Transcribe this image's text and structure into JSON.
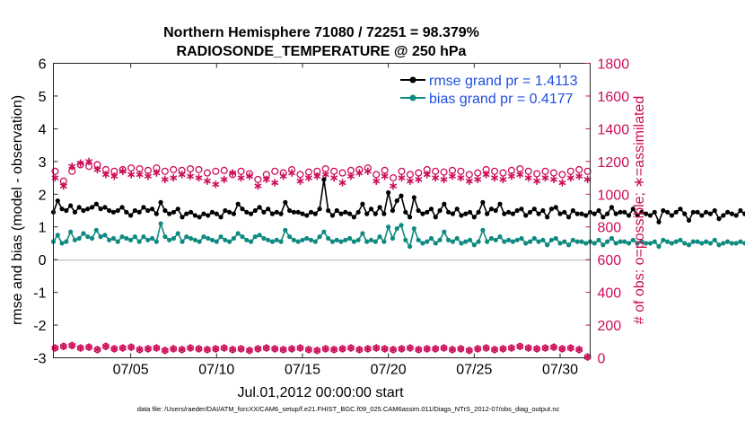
{
  "chart_data": {
    "type": "line",
    "title_line1": "Northern Hemisphere 71080 / 72251 = 98.379%",
    "title_line2": "RADIOSONDE_TEMPERATURE @ 250 hPa",
    "xlabel": "Jul.01,2012 00:00:00 start",
    "ylabel_left": "rmse and bias (model - observation)",
    "ylabel_right": "# of obs: o=possible; ∗=assimilated",
    "footer": "data file: /Users/raeder/DAI/ATM_forcXX/CAM6_setup/f.e21.FHIST_BGC.f09_025.CAM6assim.011/Diags_NTrS_2012-07/obs_diag_output.nc",
    "xlim": [
      0.5,
      31.75
    ],
    "ylim_left": [
      -3,
      6
    ],
    "ylim_right": [
      0,
      1800
    ],
    "x_ticks": [
      5,
      10,
      15,
      20,
      25,
      30
    ],
    "x_tick_labels": [
      "07/05",
      "07/10",
      "07/15",
      "07/20",
      "07/25",
      "07/30"
    ],
    "y_left_ticks": [
      "-3",
      "-2",
      "-1",
      "0",
      "1",
      "2",
      "3",
      "4",
      "5",
      "6"
    ],
    "y_right_ticks": [
      "0",
      "200",
      "400",
      "600",
      "800",
      "1000",
      "1200",
      "1400",
      "1600",
      "1800"
    ],
    "legend_location": "top-right",
    "legend": [
      {
        "label": "rmse grand pr = 1.4113",
        "color": "#000000"
      },
      {
        "label": "bias grand pr = 0.4177",
        "color": "#0f8a80"
      }
    ],
    "colors": {
      "rmse": "#000000",
      "bias": "#0f8a80",
      "obs": "#cc0e5a",
      "zero_line": "#b0b0b0"
    },
    "x_start": 0.5,
    "x_step": 0.25,
    "rmse": [
      1.45,
      1.8,
      1.55,
      1.5,
      1.65,
      1.45,
      1.6,
      1.5,
      1.55,
      1.6,
      1.7,
      1.55,
      1.6,
      1.5,
      1.45,
      1.5,
      1.6,
      1.45,
      1.35,
      1.5,
      1.45,
      1.6,
      1.5,
      1.55,
      1.4,
      1.75,
      1.5,
      1.4,
      1.45,
      1.55,
      1.3,
      1.4,
      1.45,
      1.35,
      1.3,
      1.4,
      1.35,
      1.45,
      1.4,
      1.3,
      1.5,
      1.45,
      1.4,
      1.7,
      1.55,
      1.45,
      1.4,
      1.5,
      1.6,
      1.45,
      1.55,
      1.4,
      1.45,
      1.4,
      1.75,
      1.5,
      1.45,
      1.45,
      1.4,
      1.35,
      1.45,
      1.4,
      1.55,
      2.45,
      1.5,
      1.35,
      1.5,
      1.4,
      1.45,
      1.4,
      1.3,
      1.45,
      1.7,
      1.4,
      1.55,
      1.4,
      1.6,
      1.4,
      2.05,
      1.5,
      1.8,
      1.95,
      1.45,
      1.3,
      1.9,
      1.5,
      1.4,
      1.45,
      1.55,
      1.3,
      1.5,
      1.7,
      1.45,
      1.4,
      1.55,
      1.35,
      1.4,
      1.45,
      1.3,
      1.45,
      1.75,
      1.4,
      1.55,
      1.5,
      1.7,
      1.4,
      1.45,
      1.4,
      1.5,
      1.55,
      1.35,
      1.45,
      1.55,
      1.4,
      1.5,
      1.3,
      1.55,
      1.6,
      1.4,
      1.45,
      1.3,
      1.5,
      1.4,
      1.4,
      1.35,
      1.45,
      1.4,
      1.5,
      1.3,
      1.4,
      1.6,
      1.4,
      1.45,
      1.45,
      1.35,
      1.55,
      1.35,
      1.45,
      1.4,
      1.35,
      1.45,
      1.15,
      1.5,
      1.45,
      1.35,
      1.45,
      1.55,
      1.4,
      1.2,
      1.45,
      1.45,
      1.35,
      1.45,
      1.4,
      1.5,
      1.25,
      1.35,
      1.45,
      1.4,
      1.35,
      1.5,
      1.4,
      1.3,
      1.6,
      1.35,
      1.45,
      1.45,
      1.5,
      1.3,
      1.4,
      1.6,
      1.35,
      1.45,
      1.55,
      1.4,
      1.35,
      1.5,
      1.45,
      1.25,
      1.55,
      1.45,
      1.4,
      1.55,
      1.45,
      1.5,
      1.55,
      1.4,
      1.35,
      1.45,
      1.4,
      1.35,
      1.45,
      1.25,
      1.3,
      1.5,
      1.45,
      1.3,
      1.55,
      1.45,
      1.35,
      1.2,
      1.5,
      1.3,
      1.4,
      1.45,
      1.3,
      1.65,
      1.4,
      1.4
    ],
    "bias": [
      0.55,
      0.75,
      0.5,
      0.55,
      0.85,
      0.6,
      0.65,
      0.8,
      0.7,
      0.65,
      0.9,
      0.7,
      0.75,
      0.6,
      0.65,
      0.55,
      0.7,
      0.65,
      0.6,
      0.7,
      0.55,
      0.7,
      0.6,
      0.65,
      0.55,
      1.1,
      0.7,
      0.6,
      0.65,
      0.8,
      0.55,
      0.7,
      0.65,
      0.6,
      0.55,
      0.7,
      0.65,
      0.6,
      0.55,
      0.7,
      0.6,
      0.55,
      0.65,
      0.8,
      0.7,
      0.6,
      0.55,
      0.7,
      0.75,
      0.65,
      0.6,
      0.55,
      0.6,
      0.55,
      0.9,
      0.7,
      0.6,
      0.55,
      0.6,
      0.65,
      0.6,
      0.55,
      0.7,
      0.85,
      0.65,
      0.55,
      0.6,
      0.55,
      0.6,
      0.65,
      0.55,
      0.6,
      0.8,
      0.55,
      0.6,
      0.55,
      0.7,
      0.55,
      1.0,
      0.65,
      0.95,
      1.05,
      0.6,
      0.4,
      0.95,
      0.6,
      0.5,
      0.55,
      0.65,
      0.5,
      0.6,
      0.85,
      0.6,
      0.55,
      0.65,
      0.5,
      0.55,
      0.6,
      0.45,
      0.55,
      0.9,
      0.55,
      0.65,
      0.6,
      0.7,
      0.55,
      0.6,
      0.55,
      0.6,
      0.65,
      0.5,
      0.55,
      0.65,
      0.55,
      0.6,
      0.45,
      0.6,
      0.65,
      0.5,
      0.55,
      0.45,
      0.6,
      0.55,
      0.55,
      0.5,
      0.55,
      0.5,
      0.6,
      0.45,
      0.55,
      0.65,
      0.5,
      0.55,
      0.55,
      0.5,
      0.6,
      0.5,
      0.55,
      0.5,
      0.5,
      0.55,
      0.4,
      0.6,
      0.55,
      0.5,
      0.55,
      0.6,
      0.5,
      0.45,
      0.55,
      0.55,
      0.5,
      0.55,
      0.5,
      0.6,
      0.45,
      0.5,
      0.55,
      0.5,
      0.5,
      0.55,
      0.5,
      0.45,
      0.6,
      0.5,
      0.55,
      0.55,
      0.6,
      0.45,
      0.5,
      0.65,
      0.5,
      0.55,
      0.6,
      0.5,
      0.45,
      0.55,
      0.55,
      0.45,
      0.6,
      0.55,
      0.5,
      0.6,
      0.55,
      0.6,
      0.6,
      0.5,
      0.45,
      0.55,
      0.5,
      0.45,
      0.55,
      0.4,
      0.45,
      0.6,
      0.55,
      0.45,
      0.6,
      0.55,
      0.5,
      0.2,
      0.55,
      0.35,
      0.5,
      0.55,
      0.45,
      1.1,
      0.6,
      0.7
    ],
    "possible_counts": [
      1140,
      1080,
      1140,
      1180,
      1170,
      1180,
      1150,
      1140,
      1150,
      1160,
      1155,
      1145,
      1160,
      1140,
      1150,
      1145,
      1155,
      1150,
      1130,
      1140,
      1145,
      1120,
      1140,
      1125,
      1090,
      1120,
      1140,
      1130,
      1150,
      1120,
      1135,
      1140,
      1155,
      1140,
      1130,
      1145,
      1150,
      1160,
      1120,
      1145,
      1100,
      1140,
      1120,
      1130,
      1150,
      1140,
      1135,
      1145,
      1140,
      1120,
      1130,
      1150,
      1140,
      1130,
      1145,
      1155,
      1140,
      1125,
      1140,
      1130,
      1120,
      1140,
      1150,
      1140
    ],
    "assimilated_counts": [
      1100,
      1050,
      1170,
      1190,
      1200,
      1150,
      1120,
      1110,
      1140,
      1120,
      1120,
      1110,
      1130,
      1090,
      1100,
      1120,
      1110,
      1100,
      1080,
      1060,
      1090,
      1130,
      1100,
      1110,
      1050,
      1090,
      1070,
      1110,
      1130,
      1080,
      1100,
      1110,
      1120,
      1100,
      1070,
      1110,
      1130,
      1140,
      1080,
      1110,
      1050,
      1100,
      1080,
      1090,
      1120,
      1100,
      1090,
      1110,
      1100,
      1080,
      1090,
      1120,
      1100,
      1090,
      1110,
      1120,
      1100,
      1080,
      1100,
      1090,
      1070,
      1100,
      1110,
      1090
    ],
    "low_counts": [
      60,
      70,
      75,
      60,
      65,
      50,
      70,
      55,
      60,
      65,
      50,
      55,
      60,
      45,
      55,
      50,
      60,
      55,
      50,
      55,
      60,
      50,
      55,
      45,
      55,
      60,
      55,
      50,
      55,
      60,
      50,
      45,
      55,
      50,
      55,
      60,
      50,
      55,
      60,
      55,
      50,
      55,
      60,
      50,
      55,
      55,
      60,
      50,
      55,
      45,
      55,
      60,
      50,
      55,
      60,
      70,
      60,
      55,
      60,
      65,
      55,
      60,
      50,
      5
    ]
  }
}
